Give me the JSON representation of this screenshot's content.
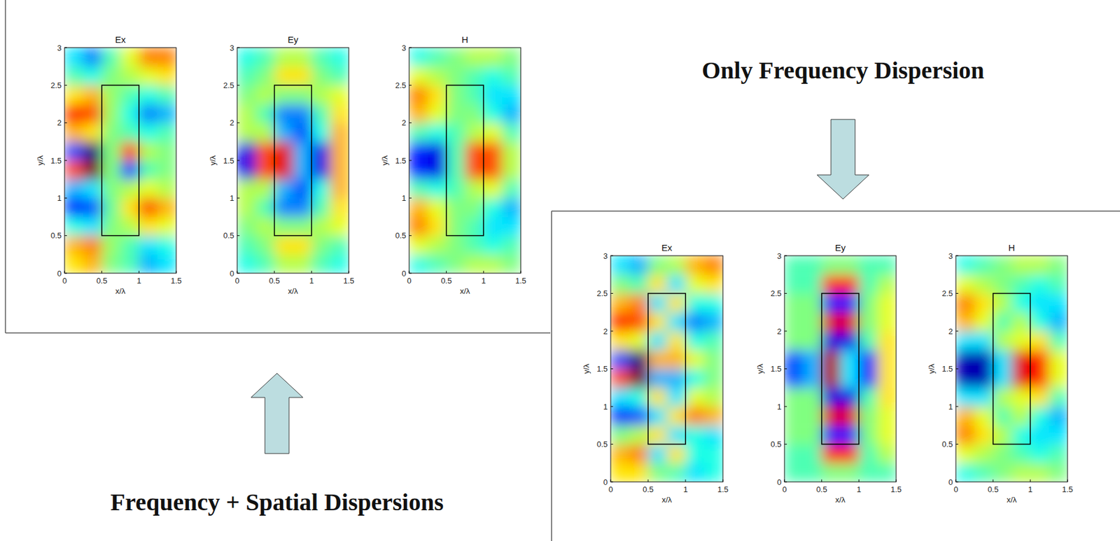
{
  "captions": [
    "Only Frequency Dispersion",
    "Frequency + Spatial Dispersions"
  ],
  "chart_data": [
    {
      "type": "heatmap",
      "title": "Ex",
      "x_label": "x/λ",
      "y_label": "y/λ",
      "xlim": [
        0,
        1.5
      ],
      "ylim": [
        0,
        3
      ],
      "xticks": [
        0,
        0.5,
        1,
        1.5
      ],
      "yticks": [
        0,
        0.5,
        1,
        1.5,
        2,
        2.5,
        3
      ],
      "zlim": [
        -1,
        1
      ],
      "x": [
        0.125,
        0.375,
        0.625,
        0.875,
        1.125,
        1.375
      ],
      "y": [
        0.125,
        0.375,
        0.625,
        0.875,
        1.125,
        1.375,
        1.625,
        1.875,
        2.125,
        2.375,
        2.625,
        2.875
      ],
      "box": {
        "x": [
          0.5,
          1
        ],
        "y": [
          0.5,
          2.5
        ]
      },
      "values": [
        [
          0.3,
          0.4,
          0,
          -0.1,
          -0.4,
          -0.3
        ],
        [
          0.4,
          0.5,
          0.05,
          -0.1,
          -0.3,
          -0.2
        ],
        [
          -0.2,
          -0.3,
          0,
          0.1,
          0.3,
          0.2
        ],
        [
          -0.7,
          -0.6,
          -0.05,
          0.3,
          0.6,
          0.4
        ],
        [
          -0.4,
          -0.3,
          0,
          0.1,
          0.2,
          0.1
        ],
        [
          0.6,
          1,
          0,
          -0.6,
          -0.1,
          0
        ],
        [
          -0.6,
          -1,
          0,
          0.6,
          0.1,
          0
        ],
        [
          0.4,
          0.3,
          0,
          -0.1,
          -0.2,
          -0.1
        ],
        [
          0.7,
          0.6,
          0.05,
          -0.2,
          -0.5,
          -0.4
        ],
        [
          0.3,
          0.4,
          0.05,
          -0.1,
          -0.2,
          -0.1
        ],
        [
          -0.1,
          -0.2,
          0,
          0.1,
          0.2,
          0.3
        ],
        [
          -0.3,
          -0.5,
          -0.1,
          0.2,
          0.5,
          0.5
        ]
      ]
    },
    {
      "type": "heatmap",
      "title": "Ey",
      "x_label": "x/λ",
      "y_label": "y/λ",
      "xlim": [
        0,
        1.5
      ],
      "ylim": [
        0,
        3
      ],
      "xticks": [
        0,
        0.5,
        1,
        1.5
      ],
      "yticks": [
        0,
        0.5,
        1,
        1.5,
        2,
        2.5,
        3
      ],
      "zlim": [
        -1,
        1
      ],
      "x": [
        0.125,
        0.375,
        0.625,
        0.875,
        1.125,
        1.375
      ],
      "y": [
        0.125,
        0.375,
        0.625,
        0.875,
        1.125,
        1.375,
        1.625,
        1.875,
        2.125,
        2.375,
        2.625,
        2.875
      ],
      "box": {
        "x": [
          0.5,
          1
        ],
        "y": [
          0.5,
          2.5
        ]
      },
      "values": [
        [
          -0.2,
          -0.1,
          0.1,
          0.1,
          -0.1,
          -0.2
        ],
        [
          -0.1,
          0,
          0.3,
          0.3,
          0,
          -0.1
        ],
        [
          0,
          0.1,
          0,
          0,
          0.1,
          0.2
        ],
        [
          0.1,
          -0.1,
          -0.5,
          -0.5,
          -0.1,
          0.3
        ],
        [
          0.1,
          0.1,
          -0.4,
          -0.6,
          -0.2,
          0.4
        ],
        [
          -0.8,
          0.6,
          0.8,
          -0.4,
          -0.8,
          0.4
        ],
        [
          -0.8,
          0.6,
          0.8,
          -0.4,
          -0.8,
          0.4
        ],
        [
          0.1,
          0.1,
          -0.4,
          -0.6,
          -0.2,
          0.4
        ],
        [
          0.1,
          -0.1,
          -0.5,
          -0.5,
          -0.1,
          0.3
        ],
        [
          0,
          0.1,
          0,
          0,
          0.1,
          0.2
        ],
        [
          -0.1,
          0,
          0.3,
          0.3,
          0,
          -0.1
        ],
        [
          -0.2,
          -0.1,
          0.1,
          0.1,
          -0.1,
          -0.2
        ]
      ]
    },
    {
      "type": "heatmap",
      "title": "H",
      "x_label": "x/λ",
      "y_label": "y/λ",
      "xlim": [
        0,
        1.5
      ],
      "ylim": [
        0,
        3
      ],
      "xticks": [
        0,
        0.5,
        1,
        1.5
      ],
      "yticks": [
        0,
        0.5,
        1,
        1.5,
        2,
        2.5,
        3
      ],
      "zlim": [
        -1,
        1
      ],
      "x": [
        0.125,
        0.375,
        0.625,
        0.875,
        1.125,
        1.375
      ],
      "y": [
        0.125,
        0.375,
        0.625,
        0.875,
        1.125,
        1.375,
        1.625,
        1.875,
        2.125,
        2.375,
        2.625,
        2.875
      ],
      "box": {
        "x": [
          0.5,
          1
        ],
        "y": [
          0.5,
          2.5
        ]
      },
      "values": [
        [
          -0.2,
          -0.1,
          0,
          0.1,
          0.1,
          0
        ],
        [
          0.2,
          0.1,
          0,
          -0.1,
          -0.2,
          -0.1
        ],
        [
          0.5,
          0.3,
          0,
          -0.1,
          -0.3,
          -0.3
        ],
        [
          0.4,
          0.2,
          0,
          0,
          -0.2,
          -0.4
        ],
        [
          -0.1,
          -0.2,
          -0.1,
          0.1,
          0.2,
          -0.1
        ],
        [
          -0.7,
          -0.8,
          -0.1,
          0.6,
          0.6,
          0.1
        ],
        [
          -0.7,
          -0.8,
          -0.1,
          0.6,
          0.6,
          0.1
        ],
        [
          -0.1,
          -0.2,
          -0.1,
          0.1,
          0.2,
          -0.1
        ],
        [
          0.4,
          0.2,
          0,
          0,
          -0.2,
          -0.4
        ],
        [
          0.5,
          0.3,
          0,
          -0.1,
          -0.3,
          -0.3
        ],
        [
          0.2,
          0.1,
          0,
          -0.1,
          -0.2,
          -0.1
        ],
        [
          -0.2,
          -0.1,
          0,
          0.1,
          0.1,
          0
        ]
      ]
    },
    {
      "type": "heatmap",
      "title": "Ex",
      "x_label": "x/λ",
      "y_label": "y/λ",
      "xlim": [
        0,
        1.5
      ],
      "ylim": [
        0,
        3
      ],
      "xticks": [
        0,
        0.5,
        1,
        1.5
      ],
      "yticks": [
        0,
        0.5,
        1,
        1.5,
        2,
        2.5,
        3
      ],
      "zlim": [
        -1,
        1
      ],
      "x": [
        0.125,
        0.375,
        0.625,
        0.875,
        1.125,
        1.375
      ],
      "y": [
        0.125,
        0.375,
        0.625,
        0.875,
        1.125,
        1.375,
        1.625,
        1.875,
        2.125,
        2.375,
        2.625,
        2.875
      ],
      "box": {
        "x": [
          0.5,
          1
        ],
        "y": [
          0.5,
          2.5
        ]
      },
      "values": [
        [
          0.3,
          0.3,
          0,
          -0.1,
          -0.3,
          -0.2
        ],
        [
          0.4,
          0.5,
          -0.3,
          0.3,
          -0.2,
          -0.2
        ],
        [
          0,
          0.1,
          0.3,
          -0.3,
          -0.2,
          -0.3
        ],
        [
          -0.7,
          -0.6,
          -0.3,
          0.3,
          0.5,
          0.4
        ],
        [
          -0.3,
          -0.2,
          0.3,
          -0.3,
          0.2,
          0.1
        ],
        [
          0.6,
          1,
          -0.4,
          -0.4,
          -0.2,
          0
        ],
        [
          -0.6,
          -1,
          0.4,
          0.4,
          0.2,
          0
        ],
        [
          0.3,
          0.2,
          -0.3,
          0.3,
          -0.2,
          -0.1
        ],
        [
          0.7,
          0.6,
          0.3,
          -0.3,
          -0.5,
          -0.4
        ],
        [
          0.4,
          0.5,
          -0.3,
          0.3,
          -0.2,
          -0.2
        ],
        [
          0,
          -0.1,
          0.3,
          -0.3,
          0.2,
          0.3
        ],
        [
          -0.3,
          -0.4,
          0,
          0.1,
          0.4,
          0.5
        ]
      ]
    },
    {
      "type": "heatmap",
      "title": "Ey",
      "x_label": "x/λ",
      "y_label": "y/λ",
      "xlim": [
        0,
        1.5
      ],
      "ylim": [
        0,
        3
      ],
      "xticks": [
        0,
        0.5,
        1,
        1.5
      ],
      "yticks": [
        0,
        0.5,
        1,
        1.5,
        2,
        2.5,
        3
      ],
      "zlim": [
        -1,
        1
      ],
      "x": [
        0.125,
        0.375,
        0.625,
        0.875,
        1.125,
        1.375
      ],
      "y": [
        0.125,
        0.375,
        0.625,
        0.875,
        1.125,
        1.375,
        1.625,
        1.875,
        2.125,
        2.375,
        2.625,
        2.875
      ],
      "box": {
        "x": [
          0.5,
          1
        ],
        "y": [
          0.5,
          2.5
        ]
      },
      "values": [
        [
          -0.1,
          -0.1,
          0,
          0,
          -0.1,
          -0.1
        ],
        [
          -0.1,
          -0.1,
          0.7,
          0.7,
          -0.1,
          0.1
        ],
        [
          0,
          0,
          -0.7,
          -0.7,
          0,
          0.2
        ],
        [
          0,
          0,
          0.8,
          0.8,
          0,
          0.2
        ],
        [
          0,
          0,
          -0.8,
          -0.8,
          -0.1,
          0.3
        ],
        [
          -0.6,
          -0.4,
          0.9,
          -0.3,
          -0.7,
          0.3
        ],
        [
          -0.6,
          -0.4,
          0.9,
          -0.3,
          -0.7,
          0.3
        ],
        [
          0,
          0,
          -0.8,
          -0.8,
          -0.1,
          0.3
        ],
        [
          0,
          0,
          0.8,
          0.8,
          0,
          0.2
        ],
        [
          0,
          0,
          -0.7,
          -0.7,
          0,
          0.2
        ],
        [
          -0.1,
          -0.1,
          0.7,
          0.7,
          -0.1,
          0.1
        ],
        [
          -0.1,
          -0.1,
          0,
          0,
          -0.1,
          -0.1
        ]
      ]
    },
    {
      "type": "heatmap",
      "title": "H",
      "x_label": "x/λ",
      "y_label": "y/λ",
      "xlim": [
        0,
        1.5
      ],
      "ylim": [
        0,
        3
      ],
      "xticks": [
        0,
        0.5,
        1,
        1.5
      ],
      "yticks": [
        0,
        0.5,
        1,
        1.5,
        2,
        2.5,
        3
      ],
      "zlim": [
        -1,
        1
      ],
      "x": [
        0.125,
        0.375,
        0.625,
        0.875,
        1.125,
        1.375
      ],
      "y": [
        0.125,
        0.375,
        0.625,
        0.875,
        1.125,
        1.375,
        1.625,
        1.875,
        2.125,
        2.375,
        2.625,
        2.875
      ],
      "box": {
        "x": [
          0.5,
          1
        ],
        "y": [
          0.5,
          2.5
        ]
      },
      "values": [
        [
          -0.2,
          -0.1,
          0,
          0.1,
          0.1,
          0
        ],
        [
          0.2,
          0.1,
          0,
          -0.1,
          -0.2,
          -0.1
        ],
        [
          0.5,
          0.3,
          0.1,
          -0.2,
          -0.3,
          -0.3
        ],
        [
          0.4,
          0.2,
          -0.1,
          0.1,
          -0.2,
          -0.4
        ],
        [
          -0.3,
          -0.3,
          0.1,
          0.2,
          0.3,
          -0.1
        ],
        [
          -0.9,
          -0.9,
          -0.3,
          0.8,
          0.7,
          0.2
        ],
        [
          -0.9,
          -0.9,
          -0.3,
          0.8,
          0.7,
          0.2
        ],
        [
          -0.3,
          -0.3,
          0.1,
          0.2,
          0.3,
          -0.1
        ],
        [
          0.4,
          0.2,
          -0.1,
          0.1,
          -0.2,
          -0.4
        ],
        [
          0.5,
          0.3,
          0.1,
          -0.2,
          -0.3,
          -0.3
        ],
        [
          0.2,
          0.1,
          0,
          -0.1,
          -0.2,
          -0.1
        ],
        [
          -0.2,
          -0.1,
          0,
          0.1,
          0.1,
          0
        ]
      ]
    }
  ]
}
